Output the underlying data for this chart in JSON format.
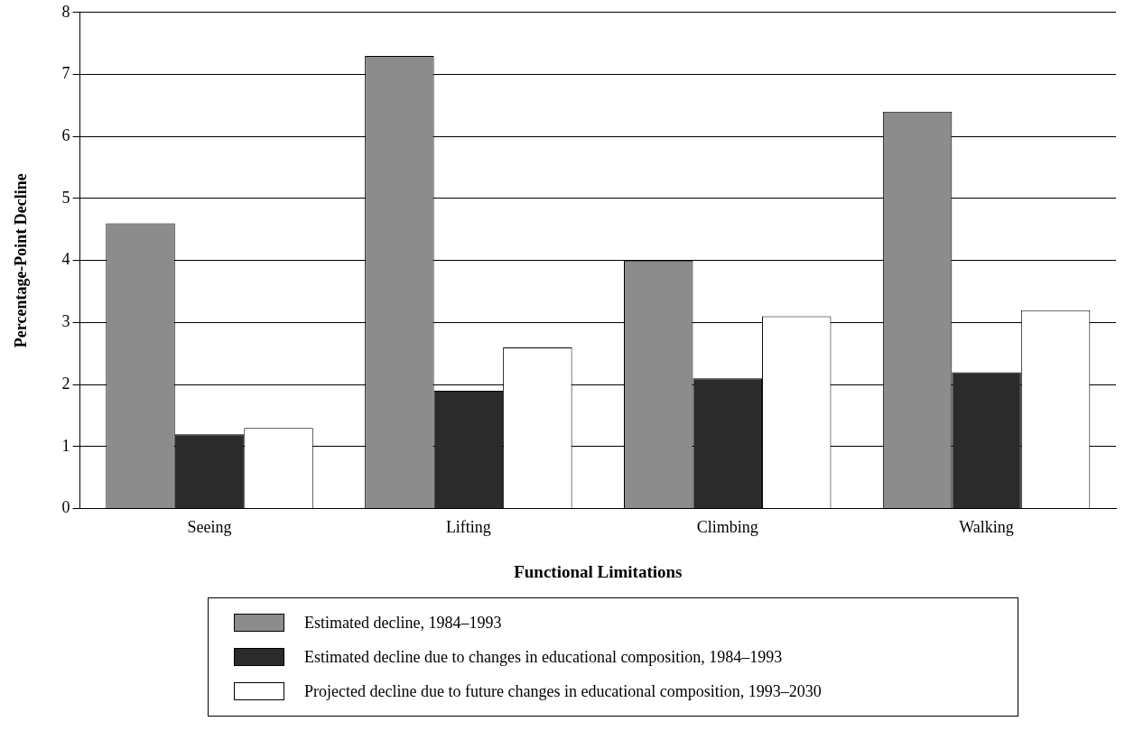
{
  "chart_data": {
    "type": "bar",
    "xlabel": "Functional Limitations",
    "ylabel": "Percentage-Point Decline",
    "categories": [
      "Seeing",
      "Lifting",
      "Climbing",
      "Walking"
    ],
    "series": [
      {
        "name": "Estimated decline, 1984–1993",
        "color": "#8c8c8c",
        "values": [
          4.6,
          7.3,
          4.0,
          6.4
        ]
      },
      {
        "name": "Estimated decline due to changes in educational composition, 1984–1993",
        "color": "#2b2b2b",
        "values": [
          1.2,
          1.9,
          2.1,
          2.2
        ]
      },
      {
        "name": "Projected decline due to future changes in educational composition, 1993–2030",
        "color": "#ffffff",
        "values": [
          1.3,
          2.6,
          3.1,
          3.2
        ]
      }
    ],
    "ylim": [
      0,
      8
    ],
    "yticks": [
      0,
      1,
      2,
      3,
      4,
      5,
      6,
      7,
      8
    ],
    "grid": "y",
    "legend": "bottom"
  }
}
